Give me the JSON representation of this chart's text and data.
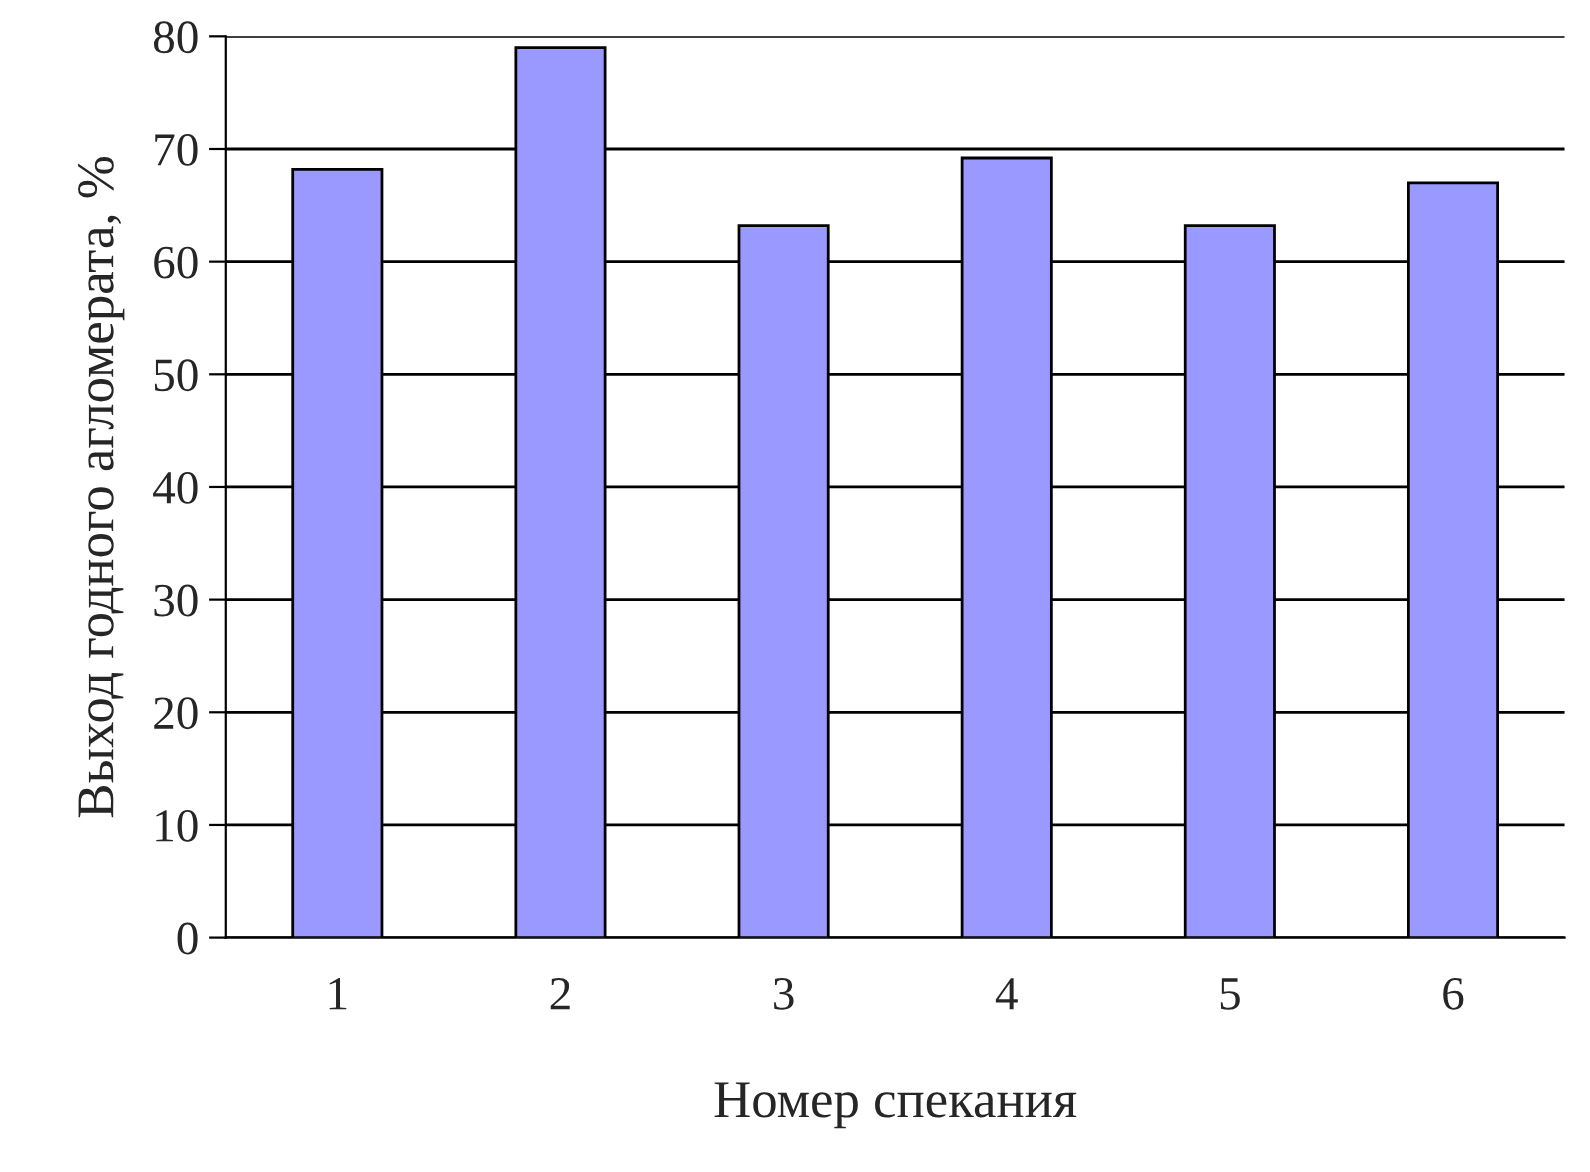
{
  "chart_data": {
    "type": "bar",
    "xlabel": "Номер спекания",
    "ylabel": "Выход годного агломерата, %",
    "categories": [
      "1",
      "2",
      "3",
      "4",
      "5",
      "6"
    ],
    "values": [
      68.2,
      79,
      63.2,
      69.2,
      63.2,
      67
    ],
    "color": "#9999ff",
    "ylim": [
      0,
      80
    ],
    "yticks": [
      0,
      10,
      20,
      30,
      40,
      50,
      60,
      70,
      80
    ],
    "grid": "y",
    "legend": false
  }
}
